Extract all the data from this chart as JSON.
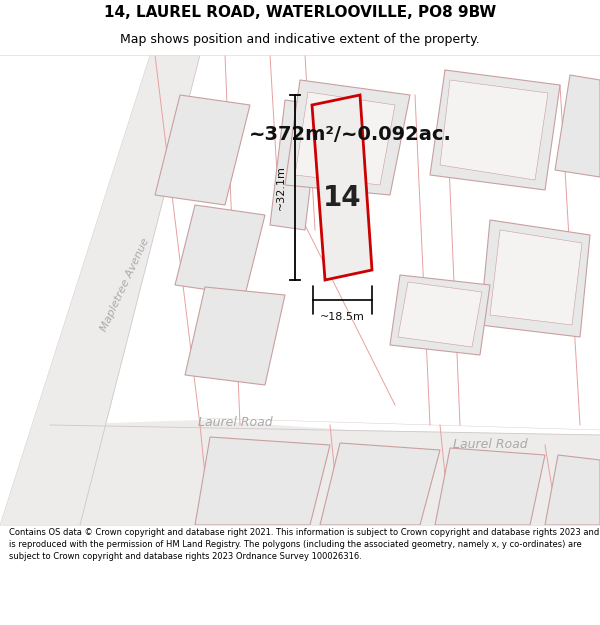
{
  "title_line1": "14, LAUREL ROAD, WATERLOOVILLE, PO8 9BW",
  "title_line2": "Map shows position and indicative extent of the property.",
  "area_text": "~372m²/~0.092ac.",
  "property_number": "14",
  "dim_width": "~18.5m",
  "dim_height": "~32.1m",
  "road_label_left": "Laurel Road",
  "road_label_right": "Laurel Road",
  "side_road_label": "Mapletree Avenue",
  "footer_text": "Contains OS data © Crown copyright and database right 2021. This information is subject to Crown copyright and database rights 2023 and is reproduced with the permission of HM Land Registry. The polygons (including the associated geometry, namely x, y co-ordinates) are subject to Crown copyright and database rights 2023 Ordnance Survey 100026316.",
  "bg_color": "#ffffff",
  "map_bg": "#ffffff",
  "property_fill": "#f0eded",
  "property_edge": "#cc0000",
  "neighbor_fill": "#e8e8e8",
  "neighbor_edge": "#c8a0a0",
  "road_fill": "#f0eded",
  "road_edge": "#d0b0b0",
  "road_text_color": "#aaaaaa",
  "side_road_text_color": "#aaaaaa",
  "title_fontsize": 11,
  "subtitle_fontsize": 9,
  "area_fontsize": 14,
  "property_num_fontsize": 20,
  "dim_fontsize": 8,
  "road_fontsize": 9,
  "footer_fontsize": 6
}
